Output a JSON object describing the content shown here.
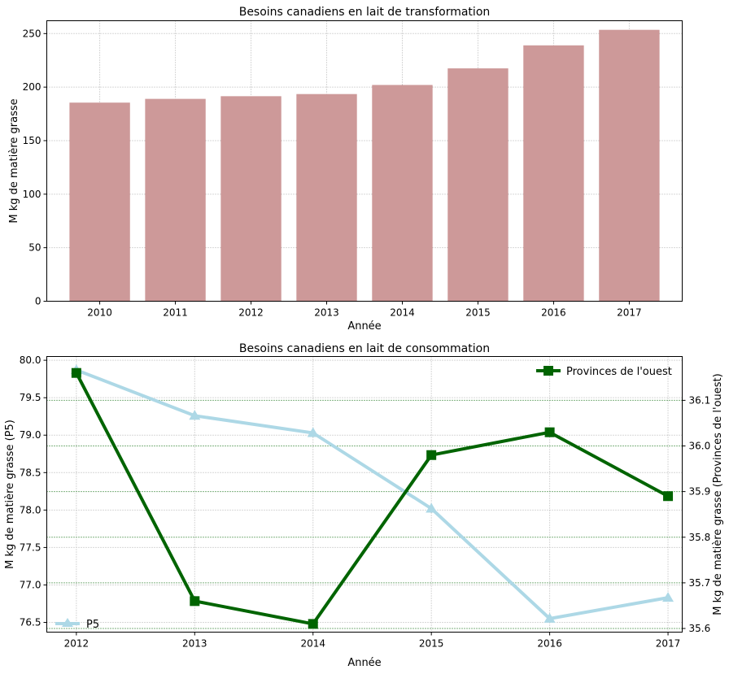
{
  "chart_data": [
    {
      "type": "bar",
      "title": "Besoins canadiens en lait de transformation",
      "xlabel": "Année",
      "ylabel": "M kg de matière grasse",
      "categories": [
        "2010",
        "2011",
        "2012",
        "2013",
        "2014",
        "2015",
        "2016",
        "2017"
      ],
      "values": [
        185.5,
        189,
        191.5,
        193.5,
        202,
        217.5,
        239,
        253.5
      ],
      "ylim": [
        0,
        262
      ],
      "yticks": [
        0,
        50,
        100,
        150,
        200,
        250
      ],
      "grid": true,
      "colors": {
        "bar": "#cd9999"
      }
    },
    {
      "type": "line",
      "title": "Besoins canadiens en lait de consommation",
      "xlabel": "Année",
      "x": [
        2012,
        2013,
        2014,
        2015,
        2016,
        2017
      ],
      "xlim": [
        2011.75,
        2017.12
      ],
      "xticks": [
        "2012",
        "2013",
        "2014",
        "2015",
        "2016",
        "2017"
      ],
      "y_left": {
        "label": "M kg de matière grasse (P5)",
        "lim": [
          76.37,
          80.05
        ],
        "ticks": [
          "76.5",
          "77.0",
          "77.5",
          "78.0",
          "78.5",
          "79.0",
          "79.5",
          "80.0"
        ]
      },
      "y_right": {
        "label": "M kg de matière grasse (Provinces de l'ouest)",
        "lim": [
          35.592,
          36.196
        ],
        "ticks": [
          "35.6",
          "35.7",
          "35.8",
          "35.9",
          "36.0",
          "36.1"
        ]
      },
      "series": [
        {
          "name": "P5",
          "axis": "left",
          "values": [
            79.87,
            79.26,
            79.03,
            78.02,
            76.55,
            76.83
          ],
          "color": "#add8e6",
          "marker": "triangle",
          "legend": "lower-left"
        },
        {
          "name": "Provinces de l'ouest",
          "axis": "right",
          "values": [
            36.16,
            35.66,
            35.61,
            35.98,
            36.03,
            35.89
          ],
          "color": "#006400",
          "marker": "square",
          "legend": "upper-right"
        }
      ],
      "grid": true
    }
  ]
}
